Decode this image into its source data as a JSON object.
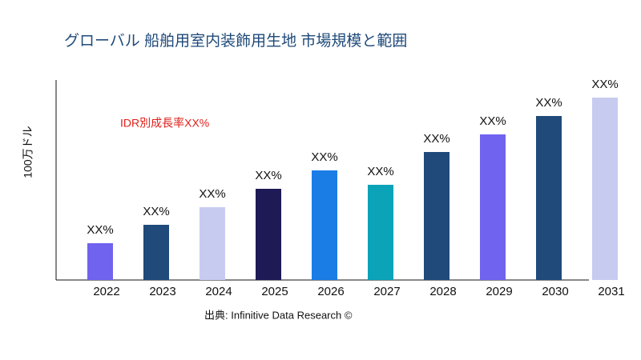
{
  "chart_data": {
    "type": "bar",
    "title": "グローバル 船舶用室内装飾用生地 市場規模と範囲",
    "y_label": "100万ドル",
    "annotation": "IDR別成長率XX%",
    "source": "出典: Infinitive Data Research ©",
    "categories": [
      "2022",
      "2023",
      "2024",
      "2025",
      "2026",
      "2027",
      "2028",
      "2029",
      "2030",
      "2031"
    ],
    "values": [
      46,
      69,
      91,
      114,
      137,
      119,
      160,
      182,
      205,
      228
    ],
    "value_labels": [
      "XX%",
      "XX%",
      "XX%",
      "XX%",
      "XX%",
      "XX%",
      "XX%",
      "XX%",
      "XX%",
      "XX%"
    ],
    "colors": [
      "#7063f0",
      "#1f4a7a",
      "#c8cbf0",
      "#1e1a56",
      "#1a7de6",
      "#0aa3b8",
      "#1f4a7a",
      "#7063f0",
      "#1f4a7a",
      "#c8cbf0"
    ],
    "ylim": [
      0,
      250
    ]
  }
}
